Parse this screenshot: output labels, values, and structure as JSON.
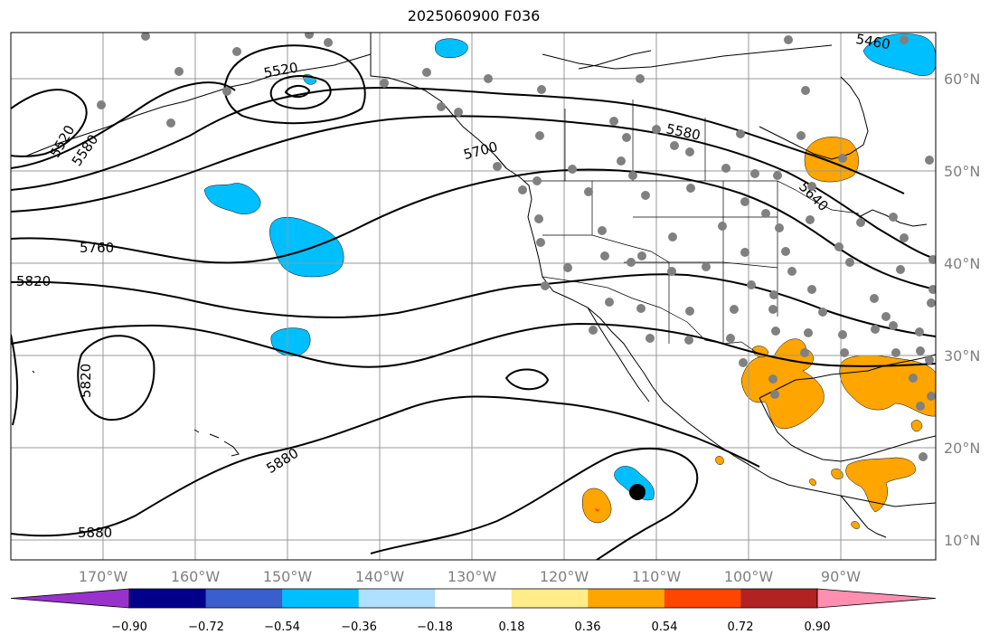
{
  "title": "2025060900 F036",
  "lat_labels": [
    "60°N",
    "50°N",
    "40°N",
    "30°N",
    "20°N",
    "10°N"
  ],
  "lon_labels": [
    "170°W",
    "160°W",
    "150°W",
    "140°W",
    "130°W",
    "120°W",
    "110°W",
    "100°W",
    "90°W"
  ],
  "colorbar": {
    "ticks": [
      "−0.90",
      "−0.72",
      "−0.54",
      "−0.36",
      "−0.18",
      "0.18",
      "0.36",
      "0.54",
      "0.72",
      "0.90"
    ],
    "colors": [
      "#9932cc",
      "#00008b",
      "#3a5fcd",
      "#00bfff",
      "#b0e0ff",
      "#ffffff",
      "#ffec8b",
      "#ffa500",
      "#ff4500",
      "#b22222",
      "#ff8fb1"
    ]
  },
  "contour_labels": [
    "5520",
    "5580",
    "5460",
    "5520",
    "5700",
    "5580",
    "5640",
    "5760",
    "5820",
    "5820",
    "5880",
    "5880"
  ],
  "marker_colors": {
    "stations": "#808080",
    "storm": "#000000",
    "contour": "#000000"
  }
}
